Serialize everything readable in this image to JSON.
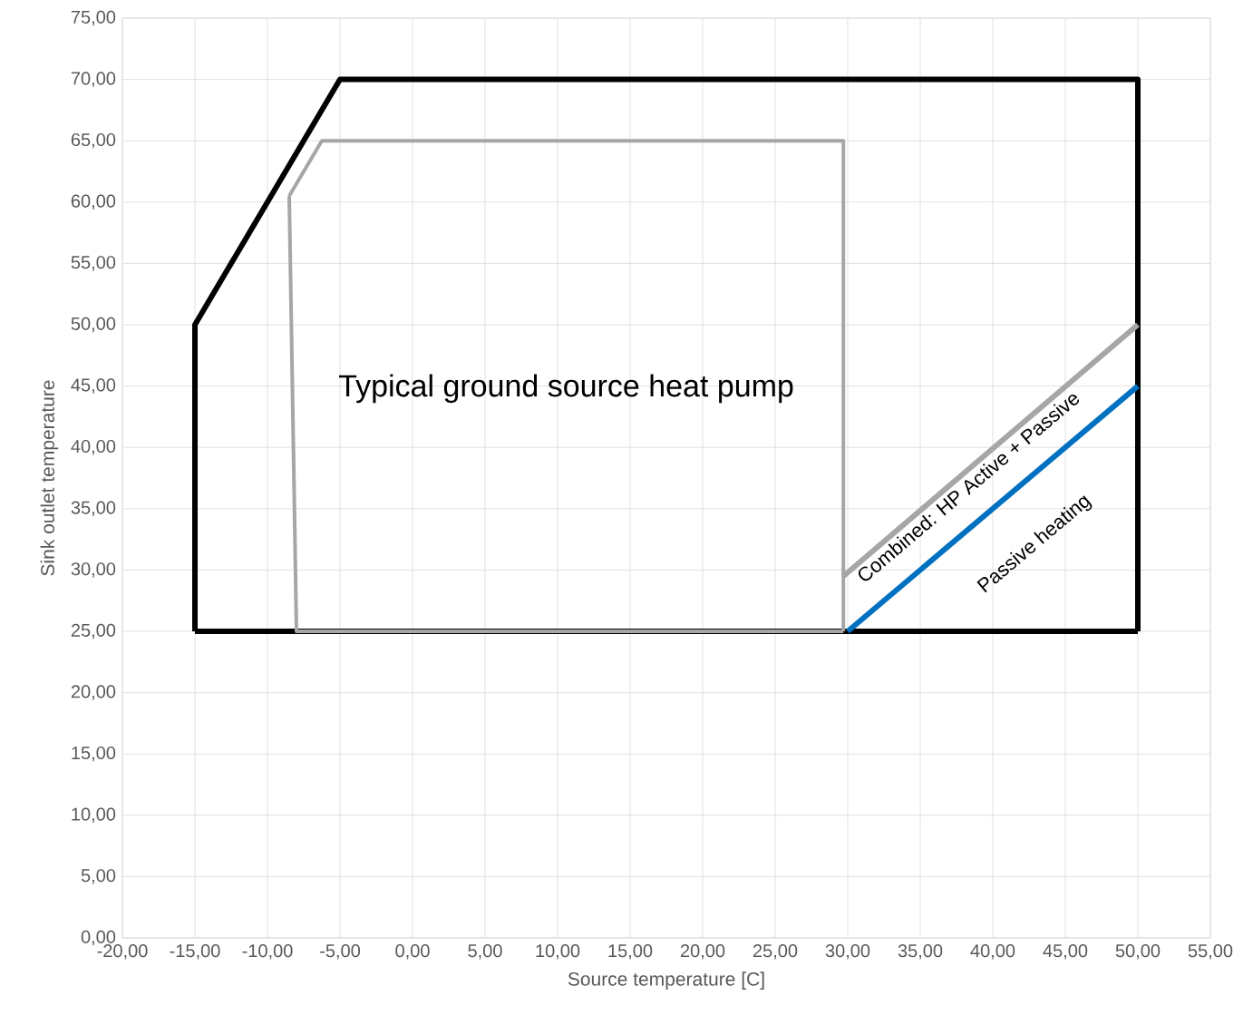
{
  "chart_data": {
    "type": "line",
    "xlabel": "Source temperature [C]",
    "ylabel": "Sink outlet temperature",
    "xlim": [
      -20,
      55
    ],
    "ylim": [
      0,
      75
    ],
    "xticks": [
      {
        "value": -20,
        "label": "-20,00"
      },
      {
        "value": -15,
        "label": "-15,00"
      },
      {
        "value": -10,
        "label": "-10,00"
      },
      {
        "value": -5,
        "label": "-5,00"
      },
      {
        "value": 0,
        "label": "0,00"
      },
      {
        "value": 5,
        "label": "5,00"
      },
      {
        "value": 10,
        "label": "10,00"
      },
      {
        "value": 15,
        "label": "15,00"
      },
      {
        "value": 20,
        "label": "20,00"
      },
      {
        "value": 25,
        "label": "25,00"
      },
      {
        "value": 30,
        "label": "30,00"
      },
      {
        "value": 35,
        "label": "35,00"
      },
      {
        "value": 40,
        "label": "40,00"
      },
      {
        "value": 45,
        "label": "45,00"
      },
      {
        "value": 50,
        "label": "50,00"
      },
      {
        "value": 55,
        "label": "55,00"
      }
    ],
    "yticks": [
      {
        "value": 0,
        "label": "0,00"
      },
      {
        "value": 5,
        "label": "5,00"
      },
      {
        "value": 10,
        "label": "10,00"
      },
      {
        "value": 15,
        "label": "15,00"
      },
      {
        "value": 20,
        "label": "20,00"
      },
      {
        "value": 25,
        "label": "25,00"
      },
      {
        "value": 30,
        "label": "30,00"
      },
      {
        "value": 35,
        "label": "35,00"
      },
      {
        "value": 40,
        "label": "40,00"
      },
      {
        "value": 45,
        "label": "45,00"
      },
      {
        "value": 50,
        "label": "50,00"
      },
      {
        "value": 55,
        "label": "55,00"
      },
      {
        "value": 60,
        "label": "60,00"
      },
      {
        "value": 65,
        "label": "65,00"
      },
      {
        "value": 70,
        "label": "70,00"
      },
      {
        "value": 75,
        "label": "75,00"
      }
    ],
    "grid": true,
    "marker": "none",
    "series": [
      {
        "color": "#000000",
        "x": [
          -15,
          -15,
          -5,
          50,
          50
        ],
        "values": [
          25,
          50,
          70,
          70,
          25
        ]
      },
      {
        "color": "#000000",
        "x": [
          -15,
          50
        ],
        "values": [
          25,
          25
        ]
      },
      {
        "color": "#a6a6a6",
        "x": [
          -8.5,
          -6.25,
          29.7,
          29.7
        ],
        "values": [
          60.5,
          65,
          65,
          25
        ]
      },
      {
        "color": "#a6a6a6",
        "x": [
          -8.5,
          -8,
          29.7
        ],
        "values": [
          60.5,
          25,
          25
        ]
      },
      {
        "color": "#a6a6a6",
        "x": [
          29.7,
          50
        ],
        "values": [
          29.5,
          50
        ]
      },
      {
        "color": "#0070c0",
        "x": [
          30,
          50
        ],
        "values": [
          25,
          45
        ]
      }
    ],
    "annotations": [
      "Typical ground source heat pump",
      "Combined: HP Active + Passive",
      "Passive heating"
    ]
  }
}
